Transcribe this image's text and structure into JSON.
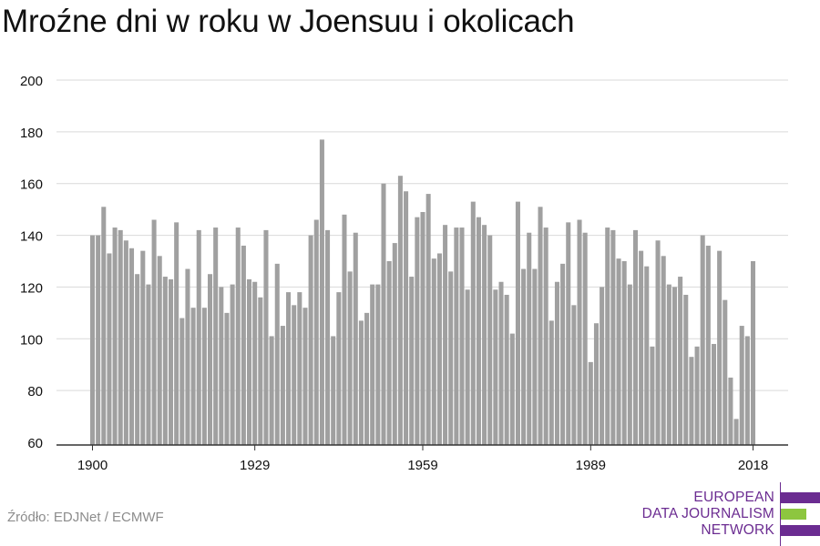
{
  "title": "Mroźne dni w roku w Joensuu i okolicach",
  "source": "Źródło: EDJNet / ECMWF",
  "logo": {
    "lines": [
      "EUROPEAN",
      "DATA JOURNALISM",
      "NETWORK"
    ],
    "colors": {
      "text": "#6b2c91",
      "bar_purple": "#6b2c91",
      "bar_green": "#8dc63f"
    }
  },
  "colors": {
    "bar": "#a0a0a0",
    "grid": "#d9d9d9",
    "axis": "#333333",
    "text": "#111111"
  },
  "chart_data": {
    "type": "bar",
    "title": "Mroźne dni w roku w Joensuu i okolicach",
    "xlabel": "",
    "ylabel": "",
    "ylim": [
      60,
      200
    ],
    "yticks": [
      60,
      80,
      100,
      120,
      140,
      160,
      180,
      200
    ],
    "xticks": [
      "1900",
      "1929",
      "1959",
      "1989",
      "2018"
    ],
    "grid": true,
    "x": [
      1900,
      1901,
      1902,
      1903,
      1904,
      1905,
      1906,
      1907,
      1908,
      1909,
      1910,
      1911,
      1912,
      1913,
      1914,
      1915,
      1916,
      1917,
      1918,
      1919,
      1920,
      1921,
      1922,
      1923,
      1924,
      1925,
      1926,
      1927,
      1928,
      1929,
      1930,
      1931,
      1932,
      1933,
      1934,
      1935,
      1936,
      1937,
      1938,
      1939,
      1940,
      1941,
      1942,
      1943,
      1944,
      1945,
      1946,
      1947,
      1948,
      1949,
      1950,
      1951,
      1952,
      1953,
      1954,
      1955,
      1956,
      1957,
      1958,
      1959,
      1960,
      1961,
      1962,
      1963,
      1964,
      1965,
      1966,
      1967,
      1968,
      1969,
      1970,
      1971,
      1972,
      1973,
      1974,
      1975,
      1976,
      1977,
      1978,
      1979,
      1980,
      1981,
      1982,
      1983,
      1984,
      1985,
      1986,
      1987,
      1988,
      1989,
      1990,
      1991,
      1992,
      1993,
      1994,
      1995,
      1996,
      1997,
      1998,
      1999,
      2000,
      2001,
      2002,
      2003,
      2004,
      2005,
      2006,
      2007,
      2008,
      2009,
      2010,
      2011,
      2012,
      2013,
      2014,
      2015,
      2016,
      2017,
      2018
    ],
    "values": [
      140,
      140,
      151,
      133,
      143,
      142,
      138,
      135,
      125,
      134,
      121,
      146,
      132,
      124,
      123,
      145,
      108,
      127,
      112,
      142,
      112,
      125,
      143,
      120,
      110,
      121,
      143,
      136,
      123,
      122,
      116,
      142,
      101,
      129,
      105,
      118,
      113,
      118,
      112,
      140,
      146,
      177,
      142,
      101,
      118,
      148,
      126,
      141,
      107,
      110,
      121,
      121,
      160,
      130,
      137,
      163,
      157,
      124,
      147,
      149,
      156,
      131,
      133,
      144,
      126,
      143,
      143,
      119,
      153,
      147,
      144,
      140,
      119,
      122,
      117,
      102,
      153,
      127,
      141,
      127,
      151,
      143,
      107,
      122,
      129,
      145,
      113,
      146,
      141,
      91,
      106,
      120,
      143,
      142,
      131,
      130,
      121,
      142,
      134,
      128,
      97,
      138,
      132,
      121,
      120,
      124,
      117,
      93,
      97,
      140,
      136,
      98,
      134,
      115,
      85,
      69,
      105,
      101,
      130
    ]
  }
}
